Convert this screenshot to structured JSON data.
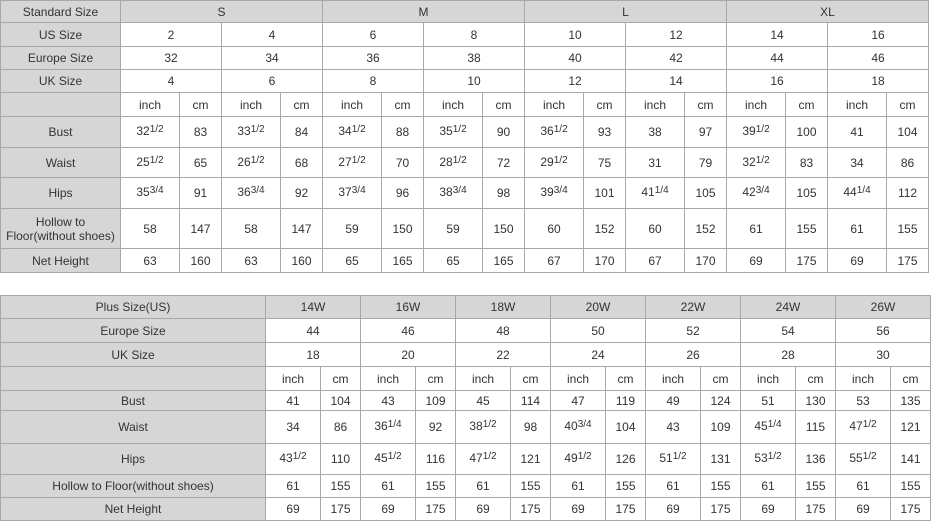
{
  "tables": [
    {
      "header": [
        "Standard Size",
        "S",
        "M",
        "L",
        "XL"
      ],
      "rows": [
        {
          "label": "US Size",
          "cells": [
            2,
            4,
            6,
            8,
            10,
            12,
            14,
            16
          ]
        },
        {
          "label": "Europe Size",
          "cells": [
            32,
            34,
            36,
            38,
            40,
            42,
            44,
            46
          ]
        },
        {
          "label": "UK Size",
          "cells": [
            4,
            6,
            8,
            10,
            12,
            14,
            16,
            18
          ]
        },
        {
          "cells": [
            "inch",
            "cm",
            "inch",
            "cm",
            "inch",
            "cm",
            "inch",
            "cm",
            "inch",
            "cm",
            "inch",
            "cm",
            "inch",
            "cm",
            "inch",
            "cm"
          ]
        },
        {
          "label": "Bust",
          "cells": [
            {
              "whole": "32",
              "frac": "1/2"
            },
            83,
            {
              "whole": "33",
              "frac": "1/2"
            },
            84,
            {
              "whole": "34",
              "frac": "1/2"
            },
            88,
            {
              "whole": "35",
              "frac": "1/2"
            },
            90,
            {
              "whole": "36",
              "frac": "1/2"
            },
            93,
            38,
            97,
            {
              "whole": "39",
              "frac": "1/2"
            },
            100,
            41,
            104
          ]
        },
        {
          "label": "Waist",
          "cells": [
            {
              "whole": "25",
              "frac": "1/2"
            },
            65,
            {
              "whole": "26",
              "frac": "1/2"
            },
            68,
            {
              "whole": "27",
              "frac": "1/2"
            },
            70,
            {
              "whole": "28",
              "frac": "1/2"
            },
            72,
            {
              "whole": "29",
              "frac": "1/2"
            },
            75,
            31,
            79,
            {
              "whole": "32",
              "frac": "1/2"
            },
            83,
            34,
            86
          ]
        },
        {
          "label": "Hips",
          "cells": [
            {
              "whole": "35",
              "frac": "3/4"
            },
            91,
            {
              "whole": "36",
              "frac": "3/4"
            },
            92,
            {
              "whole": "37",
              "frac": "3/4"
            },
            96,
            {
              "whole": "38",
              "frac": "3/4"
            },
            98,
            {
              "whole": "39",
              "frac": "3/4"
            },
            101,
            {
              "whole": "41",
              "frac": "1/4"
            },
            105,
            {
              "whole": "42",
              "frac": "3/4"
            },
            105,
            {
              "whole": "44",
              "frac": "1/4"
            },
            112
          ]
        },
        {
          "label": "Hollow to Floor(without shoes)",
          "cells": [
            58,
            147,
            58,
            147,
            59,
            150,
            59,
            150,
            60,
            152,
            60,
            152,
            61,
            155,
            61,
            155
          ]
        },
        {
          "label": "Net Height",
          "cells": [
            63,
            160,
            63,
            160,
            65,
            165,
            65,
            165,
            67,
            170,
            67,
            170,
            69,
            175,
            69,
            175
          ]
        }
      ]
    },
    {
      "header": [
        "Plus Size(US)",
        "14W",
        "16W",
        "18W",
        "20W",
        "22W",
        "24W",
        "26W"
      ],
      "rows": [
        {
          "label": "Europe Size",
          "cells": [
            44,
            46,
            48,
            50,
            52,
            54,
            56
          ]
        },
        {
          "label": "UK Size",
          "cells": [
            18,
            20,
            22,
            24,
            26,
            28,
            30
          ]
        },
        {
          "cells": [
            "inch",
            "cm",
            "inch",
            "cm",
            "inch",
            "cm",
            "inch",
            "cm",
            "inch",
            "cm",
            "inch",
            "cm",
            "inch",
            "cm"
          ]
        },
        {
          "label": "Bust",
          "cells": [
            41,
            104,
            43,
            109,
            45,
            114,
            47,
            119,
            49,
            124,
            51,
            130,
            53,
            135
          ]
        },
        {
          "label": "Waist",
          "cells": [
            34,
            86,
            {
              "whole": "36",
              "frac": "1/4"
            },
            92,
            {
              "whole": "38",
              "frac": "1/2"
            },
            98,
            {
              "whole": "40",
              "frac": "3/4"
            },
            104,
            43,
            109,
            {
              "whole": "45",
              "frac": "1/4"
            },
            115,
            {
              "whole": "47",
              "frac": "1/2"
            },
            121
          ]
        },
        {
          "label": "Hips",
          "cells": [
            {
              "whole": "43",
              "frac": "1/2"
            },
            110,
            {
              "whole": "45",
              "frac": "1/2"
            },
            116,
            {
              "whole": "47",
              "frac": "1/2"
            },
            121,
            {
              "whole": "49",
              "frac": "1/2"
            },
            126,
            {
              "whole": "51",
              "frac": "1/2"
            },
            131,
            {
              "whole": "53",
              "frac": "1/2"
            },
            136,
            {
              "whole": "55",
              "frac": "1/2"
            },
            141
          ]
        },
        {
          "label": "Hollow to Floor(without shoes)",
          "cells": [
            61,
            155,
            61,
            155,
            61,
            155,
            61,
            155,
            61,
            155,
            61,
            155,
            61,
            155
          ]
        },
        {
          "label": "Net Height",
          "cells": [
            69,
            175,
            69,
            175,
            69,
            175,
            69,
            175,
            69,
            175,
            69,
            175,
            69,
            175
          ]
        }
      ]
    }
  ]
}
